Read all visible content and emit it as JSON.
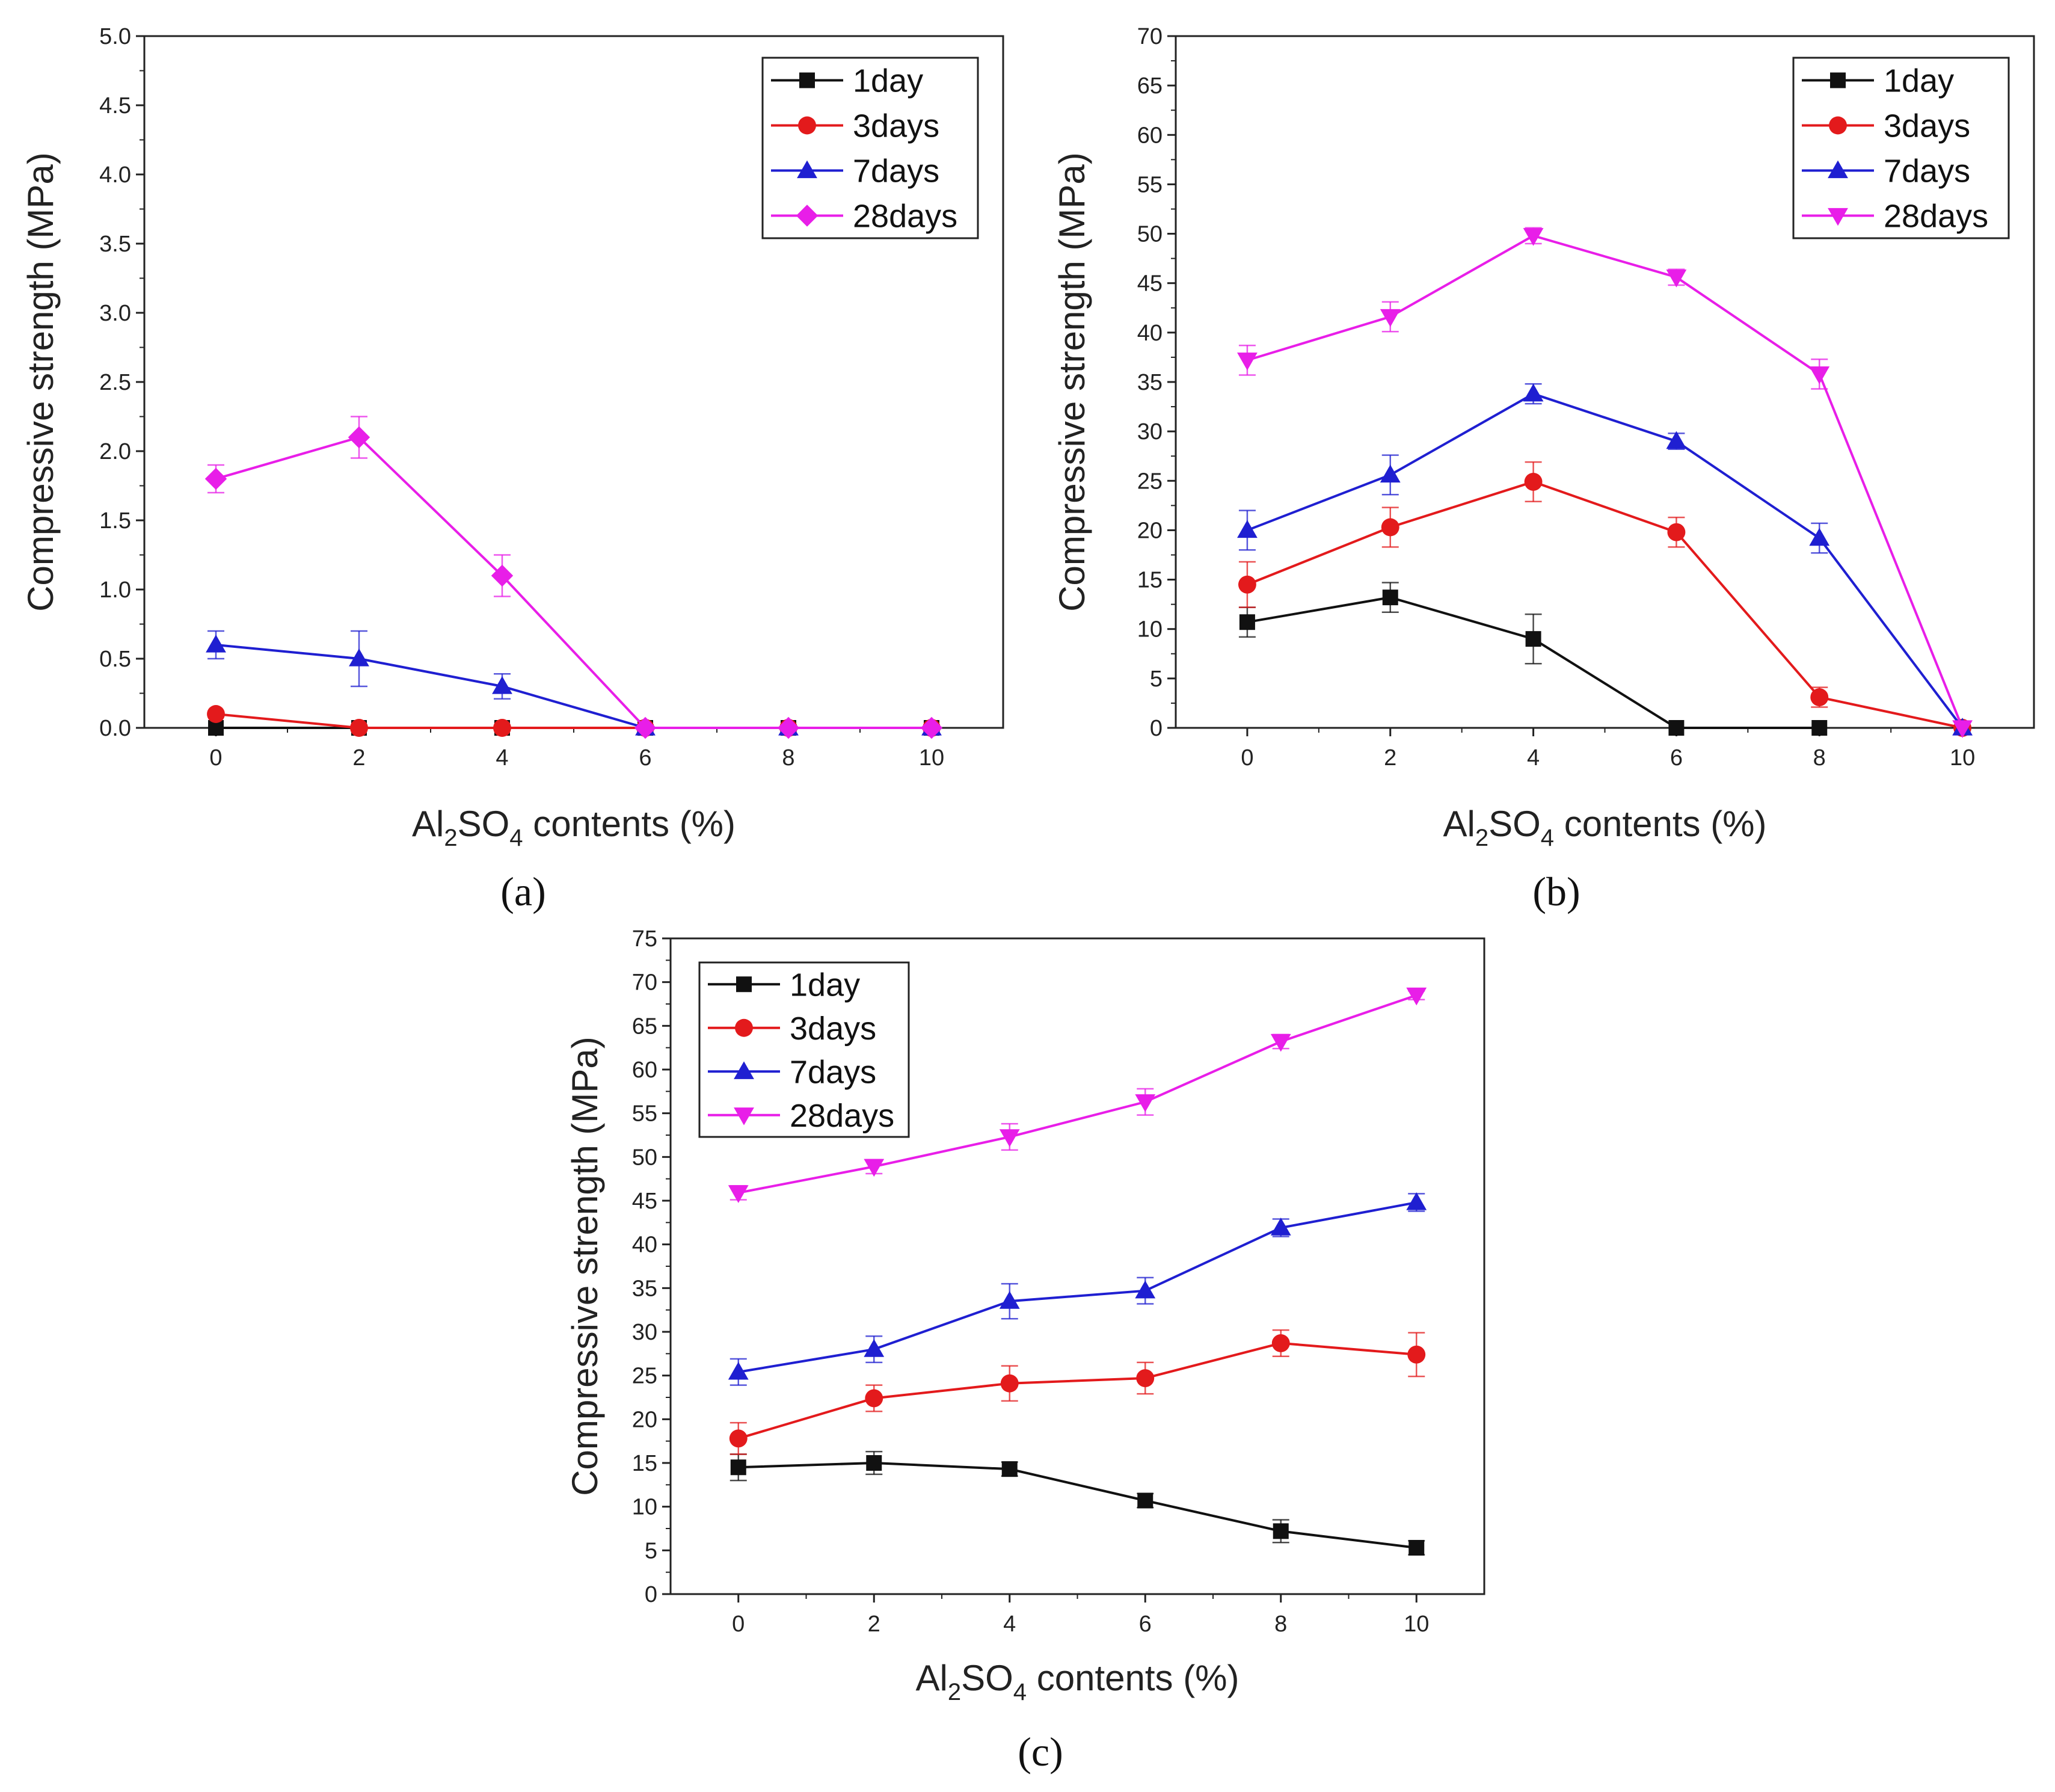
{
  "figure": {
    "captions": [
      "(a)",
      "(b)",
      "(c)"
    ]
  },
  "chart_data": [
    {
      "type": "line",
      "panel": "(a)",
      "x": [
        0,
        2,
        4,
        6,
        8,
        10
      ],
      "xlabel_parts": [
        "Al",
        "2",
        "SO",
        "4",
        " contents (%)"
      ],
      "ylabel": "Compressive strength (MPa)",
      "ylim": [
        0,
        5
      ],
      "yticks": [
        "0.0",
        "0.5",
        "1.0",
        "1.5",
        "2.0",
        "2.5",
        "3.0",
        "3.5",
        "4.0",
        "4.5",
        "5.0"
      ],
      "xticks": [
        "0",
        "2",
        "4",
        "6",
        "8",
        "10"
      ],
      "legend_position": "top-right",
      "series": [
        {
          "name": "1day",
          "color": "#111111",
          "marker": "square",
          "values": [
            0,
            0,
            0,
            0,
            0,
            0
          ],
          "errors": [
            0,
            0,
            0,
            0,
            0,
            0
          ]
        },
        {
          "name": "3days",
          "color": "#e31a1c",
          "marker": "circle",
          "values": [
            0.1,
            0,
            0,
            0,
            0,
            0
          ],
          "errors": [
            0,
            0,
            0,
            0,
            0,
            0
          ]
        },
        {
          "name": "7days",
          "color": "#1f1fd1",
          "marker": "triangle-up",
          "values": [
            0.6,
            0.5,
            0.3,
            0,
            0,
            0
          ],
          "errors": [
            0.1,
            0.2,
            0.09,
            0,
            0,
            0
          ]
        },
        {
          "name": "28days",
          "color": "#e81ee8",
          "marker": "diamond",
          "values": [
            1.8,
            2.1,
            1.1,
            0,
            0,
            0
          ],
          "errors": [
            0.1,
            0.15,
            0.15,
            0,
            0,
            0
          ]
        }
      ]
    },
    {
      "type": "line",
      "panel": "(b)",
      "x": [
        0,
        2,
        4,
        6,
        8,
        10
      ],
      "xlabel_parts": [
        "Al",
        "2",
        "SO",
        "4",
        " contents (%)"
      ],
      "ylabel": "Compressive strength (MPa)",
      "ylim": [
        0,
        70
      ],
      "yticks": [
        "0",
        "5",
        "10",
        "15",
        "20",
        "25",
        "30",
        "35",
        "40",
        "45",
        "50",
        "55",
        "60",
        "65",
        "70"
      ],
      "xticks": [
        "0",
        "2",
        "4",
        "6",
        "8",
        "10"
      ],
      "legend_position": "top-right",
      "series": [
        {
          "name": "1day",
          "color": "#111111",
          "marker": "square",
          "values": [
            10.7,
            13.2,
            9.0,
            0,
            0,
            null
          ],
          "errors": [
            1.5,
            1.5,
            2.5,
            0,
            0,
            0
          ]
        },
        {
          "name": "3days",
          "color": "#e31a1c",
          "marker": "circle",
          "values": [
            14.5,
            20.3,
            24.9,
            19.8,
            3.1,
            0
          ],
          "errors": [
            2.3,
            2.0,
            2.0,
            1.5,
            1.0,
            0
          ]
        },
        {
          "name": "7days",
          "color": "#1f1fd1",
          "marker": "triangle-up",
          "values": [
            20.0,
            25.6,
            33.8,
            29.0,
            19.2,
            0
          ],
          "errors": [
            2.0,
            2.0,
            1.0,
            0.8,
            1.5,
            0
          ]
        },
        {
          "name": "28days",
          "color": "#e81ee8",
          "marker": "triangle-down",
          "values": [
            37.2,
            41.6,
            49.8,
            45.6,
            35.8,
            0
          ],
          "errors": [
            1.5,
            1.5,
            0.8,
            0.8,
            1.5,
            0
          ]
        }
      ]
    },
    {
      "type": "line",
      "panel": "(c)",
      "x": [
        0,
        2,
        4,
        6,
        8,
        10
      ],
      "xlabel_parts": [
        "Al",
        "2",
        "SO",
        "4",
        " contents (%)"
      ],
      "ylabel": "Compressive strength (MPa)",
      "ylim": [
        0,
        75
      ],
      "yticks": [
        "0",
        "5",
        "10",
        "15",
        "20",
        "25",
        "30",
        "35",
        "40",
        "45",
        "50",
        "55",
        "60",
        "65",
        "70",
        "75"
      ],
      "xticks": [
        "0",
        "2",
        "4",
        "6",
        "8",
        "10"
      ],
      "legend_position": "top-left",
      "series": [
        {
          "name": "1day",
          "color": "#111111",
          "marker": "square",
          "values": [
            14.5,
            15.0,
            14.3,
            10.7,
            7.2,
            5.3
          ],
          "errors": [
            1.5,
            1.3,
            0.8,
            0.8,
            1.3,
            0.8
          ]
        },
        {
          "name": "3days",
          "color": "#e31a1c",
          "marker": "circle",
          "values": [
            17.8,
            22.4,
            24.1,
            24.7,
            28.7,
            27.4
          ],
          "errors": [
            1.8,
            1.5,
            2.0,
            1.8,
            1.5,
            2.5
          ]
        },
        {
          "name": "7days",
          "color": "#1f1fd1",
          "marker": "triangle-up",
          "values": [
            25.4,
            28.0,
            33.5,
            34.7,
            41.9,
            44.8
          ],
          "errors": [
            1.5,
            1.5,
            2.0,
            1.5,
            1.0,
            1.0
          ]
        },
        {
          "name": "28days",
          "color": "#e81ee8",
          "marker": "triangle-down",
          "values": [
            45.9,
            48.9,
            52.3,
            56.3,
            63.2,
            68.5
          ],
          "errors": [
            0.8,
            0.8,
            1.5,
            1.5,
            0.8,
            0.5
          ]
        }
      ]
    }
  ]
}
